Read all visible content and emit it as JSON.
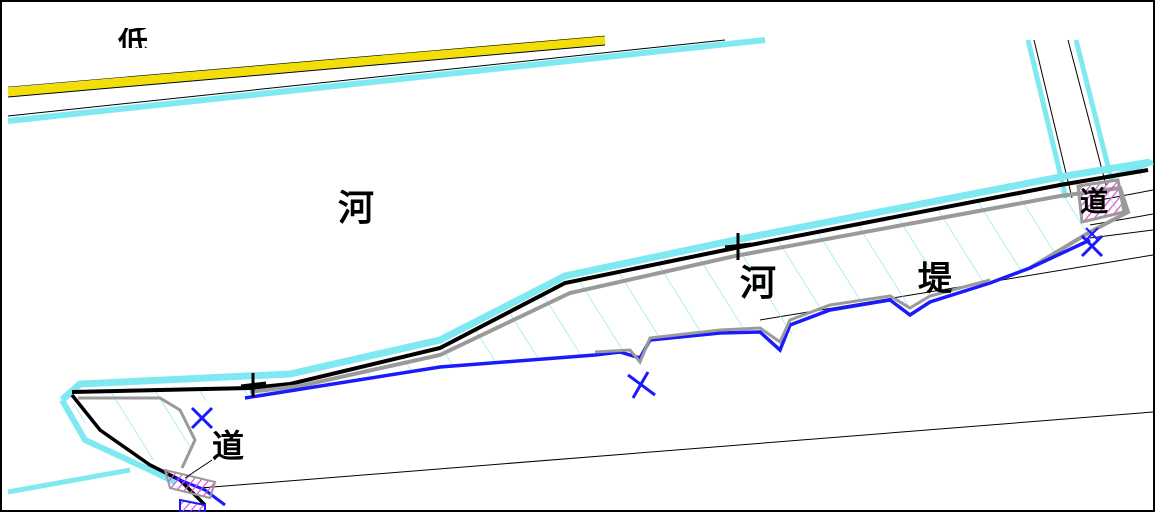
{
  "labels": {
    "river_area": "河",
    "levee_river": "河",
    "levee_bank": "堤",
    "road_left": "道",
    "road_right": "道",
    "partial_top": "低"
  },
  "colors": {
    "boundary_cyan": "#7fe9f2",
    "hatch_cyan": "#8ee6ee",
    "bank_gray": "#9a9a9a",
    "road_blue": "#1a1aff",
    "marker_blue": "#1a1aff",
    "marker_black": "#000000",
    "highway_yellow": "#f2df0a",
    "pink_hatch": "#d84fd0",
    "frame": "#000000"
  },
  "markers": {
    "black_cross_count": 2,
    "blue_cross_count": 4
  }
}
